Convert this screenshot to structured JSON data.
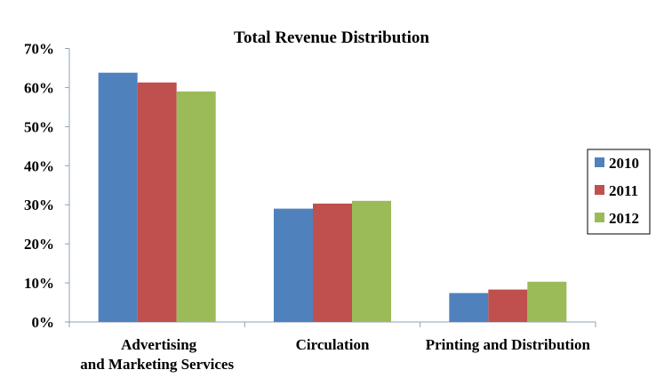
{
  "chart_data": {
    "type": "bar",
    "title": "Total  Revenue Distribution",
    "categories": [
      "Advertising|and Marketing Services",
      "Circulation",
      "Printing and Distribution"
    ],
    "series": [
      {
        "name": "2010",
        "color": "#4f81bd",
        "values": [
          63.8,
          29.0,
          7.4
        ]
      },
      {
        "name": "2011",
        "color": "#c0504d",
        "values": [
          61.3,
          30.3,
          8.3
        ]
      },
      {
        "name": "2012",
        "color": "#9bbb59",
        "values": [
          59.0,
          31.0,
          10.3
        ]
      }
    ],
    "yticks": [
      "0%",
      "10%",
      "20%",
      "30%",
      "40%",
      "50%",
      "60%",
      "70%"
    ],
    "ylim": [
      0,
      70
    ],
    "xlabel": "",
    "ylabel": "",
    "grid": false,
    "legend": "right"
  }
}
